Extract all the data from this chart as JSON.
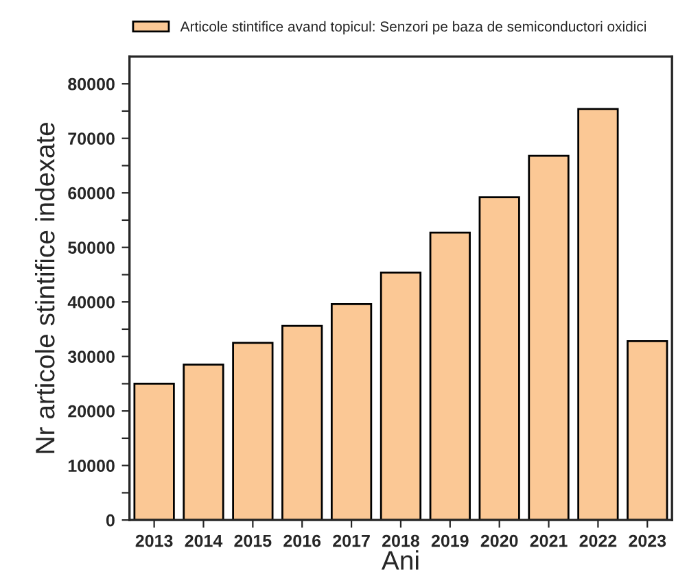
{
  "chart_data": {
    "type": "bar",
    "xlabel": "Ani",
    "ylabel": "Nr articole stintifice indexate",
    "categories": [
      "2013",
      "2014",
      "2015",
      "2016",
      "2017",
      "2018",
      "2019",
      "2020",
      "2021",
      "2022",
      "2023"
    ],
    "series": [
      {
        "name": "Articole stintifice avand topicul: Senzori pe baza de semiconductori oxidici",
        "color": "#fbc895",
        "values": [
          25000,
          28500,
          32500,
          35600,
          39600,
          45400,
          52700,
          59200,
          66800,
          75400,
          32800
        ]
      }
    ],
    "ylim": [
      0,
      85000
    ],
    "yticks": [
      0,
      {
        "value": 5000,
        "label": null
      },
      10000,
      {
        "value": 15000,
        "label": null
      },
      20000,
      {
        "value": 25000,
        "label": null
      },
      30000,
      {
        "value": 35000,
        "label": null
      },
      40000,
      {
        "value": 45000,
        "label": null
      },
      50000,
      {
        "value": 55000,
        "label": null
      },
      60000,
      {
        "value": 65000,
        "label": null
      },
      70000,
      {
        "value": 75000,
        "label": null
      },
      80000
    ],
    "grid": false,
    "legend": "top"
  }
}
